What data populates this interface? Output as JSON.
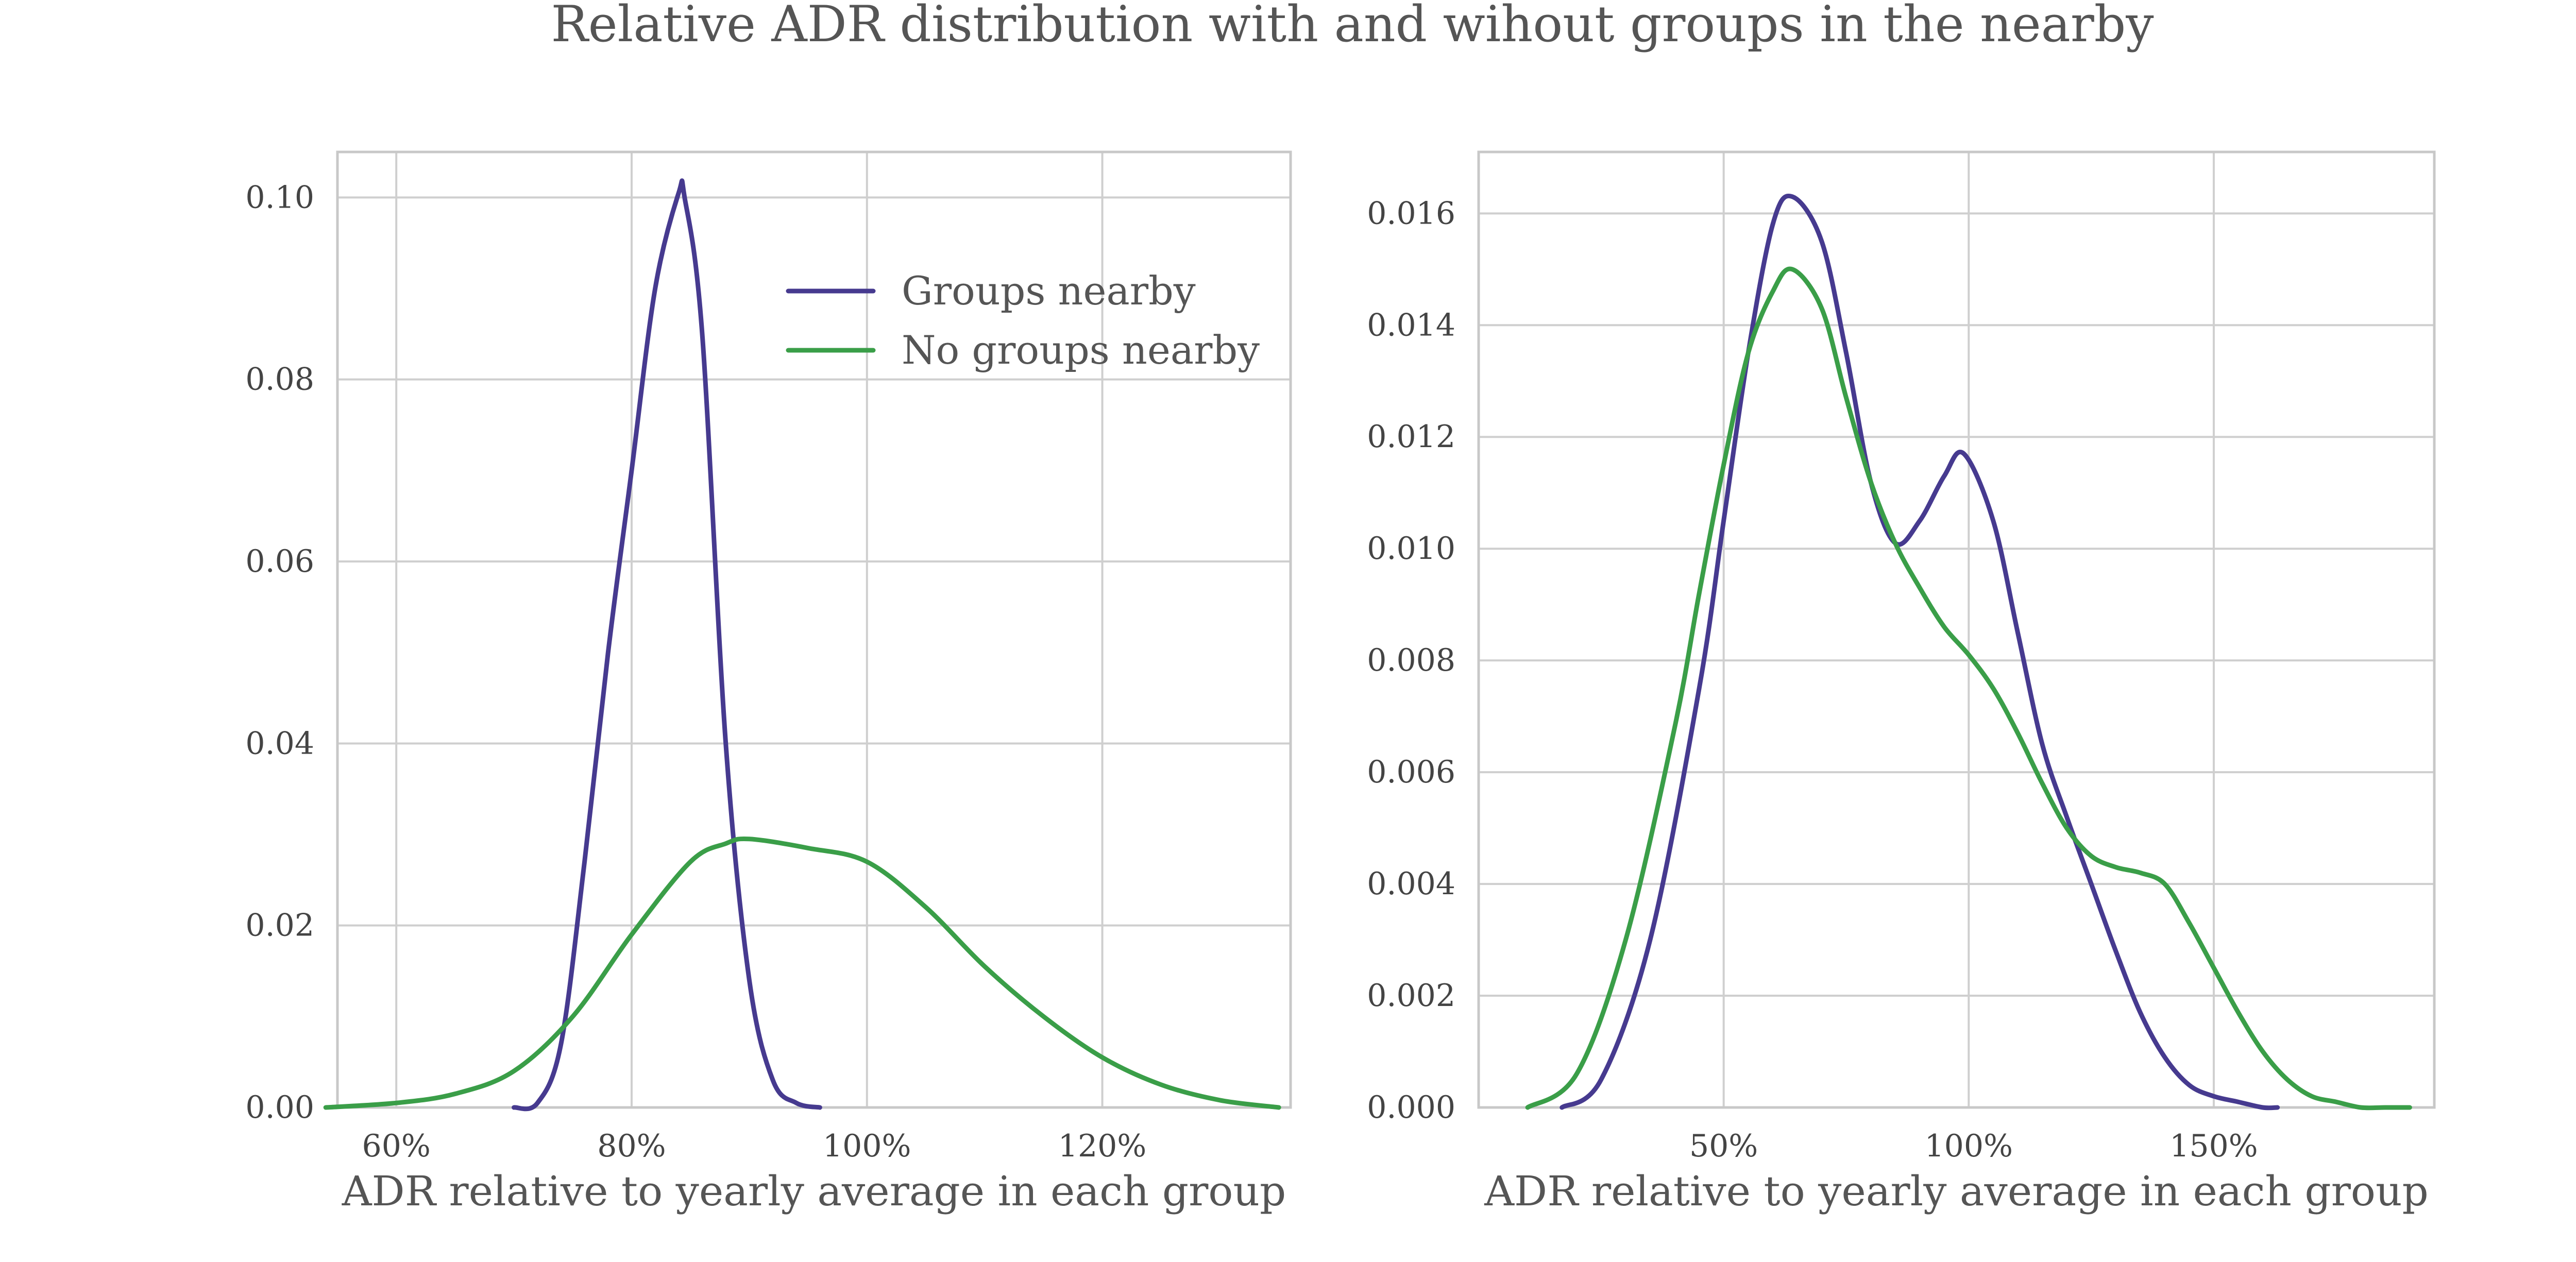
{
  "figure": {
    "title": "Relative ADR distribution with and wihout groups in the nearby"
  },
  "colors": {
    "groups_nearby": "#463a8f",
    "no_groups_nearby": "#3a9e48"
  },
  "chart_data": [
    {
      "type": "line",
      "xlabel": "ADR relative to yearly average in each group",
      "ylabel": "",
      "xlim": [
        0.55,
        1.36
      ],
      "ylim": [
        0,
        0.105
      ],
      "xticks": [
        0.6,
        0.8,
        1.0,
        1.2
      ],
      "xtick_labels": [
        "60%",
        "80%",
        "100%",
        "120%"
      ],
      "yticks": [
        0,
        0.02,
        0.04,
        0.06,
        0.08,
        0.1
      ],
      "ytick_labels": [
        "0.00",
        "0.02",
        "0.04",
        "0.06",
        "0.08",
        "0.10"
      ],
      "grid": true,
      "legend": {
        "position": "top-right"
      },
      "series": [
        {
          "name": "Groups nearby",
          "x": [
            0.7,
            0.72,
            0.74,
            0.76,
            0.78,
            0.8,
            0.82,
            0.84,
            0.845,
            0.86,
            0.88,
            0.9,
            0.92,
            0.94,
            0.96
          ],
          "y": [
            0.0,
            0.0005,
            0.007,
            0.027,
            0.05,
            0.07,
            0.09,
            0.1005,
            0.1,
            0.085,
            0.04,
            0.014,
            0.003,
            0.0005,
            0.0
          ]
        },
        {
          "name": "No groups nearby",
          "x": [
            0.54,
            0.6,
            0.65,
            0.7,
            0.75,
            0.8,
            0.85,
            0.88,
            0.9,
            0.95,
            1.0,
            1.05,
            1.1,
            1.15,
            1.2,
            1.25,
            1.3,
            1.35
          ],
          "y": [
            0.0,
            0.0005,
            0.0015,
            0.004,
            0.01,
            0.019,
            0.027,
            0.029,
            0.0295,
            0.0285,
            0.027,
            0.022,
            0.0155,
            0.01,
            0.0055,
            0.0025,
            0.0008,
            0.0
          ]
        }
      ]
    },
    {
      "type": "line",
      "xlabel": "ADR relative to yearly average in each group",
      "ylabel": "",
      "xlim": [
        0.0,
        1.95
      ],
      "ylim": [
        0,
        0.0171
      ],
      "xticks": [
        0.5,
        1.0,
        1.5
      ],
      "xtick_labels": [
        "50%",
        "100%",
        "150%"
      ],
      "yticks": [
        0,
        0.002,
        0.004,
        0.006,
        0.008,
        0.01,
        0.012,
        0.014,
        0.016
      ],
      "ytick_labels": [
        "0.000",
        "0.002",
        "0.004",
        "0.006",
        "0.008",
        "0.010",
        "0.012",
        "0.014",
        "0.016"
      ],
      "grid": true,
      "series": [
        {
          "name": "Groups nearby",
          "x": [
            0.17,
            0.25,
            0.35,
            0.45,
            0.5,
            0.55,
            0.6,
            0.64,
            0.7,
            0.75,
            0.8,
            0.85,
            0.9,
            0.95,
            0.99,
            1.05,
            1.1,
            1.15,
            1.2,
            1.25,
            1.3,
            1.35,
            1.4,
            1.45,
            1.5,
            1.55,
            1.6,
            1.63
          ],
          "y": [
            0.0,
            0.0005,
            0.003,
            0.0075,
            0.0105,
            0.0135,
            0.0158,
            0.0163,
            0.0155,
            0.0135,
            0.0112,
            0.0101,
            0.0105,
            0.0113,
            0.0117,
            0.0105,
            0.0085,
            0.0065,
            0.0052,
            0.004,
            0.0028,
            0.0017,
            0.0009,
            0.0004,
            0.0002,
            0.0001,
            0.0,
            0.0
          ]
        },
        {
          "name": "No groups nearby",
          "x": [
            0.1,
            0.2,
            0.3,
            0.4,
            0.45,
            0.5,
            0.55,
            0.6,
            0.64,
            0.7,
            0.75,
            0.8,
            0.85,
            0.9,
            0.95,
            1.0,
            1.05,
            1.1,
            1.15,
            1.2,
            1.25,
            1.3,
            1.35,
            1.4,
            1.45,
            1.5,
            1.55,
            1.6,
            1.65,
            1.7,
            1.75,
            1.8,
            1.85,
            1.9
          ],
          "y": [
            0.0,
            0.0006,
            0.003,
            0.0068,
            0.0092,
            0.0115,
            0.0135,
            0.0146,
            0.015,
            0.0143,
            0.0127,
            0.0112,
            0.0101,
            0.0093,
            0.0086,
            0.0081,
            0.0075,
            0.0067,
            0.0058,
            0.005,
            0.0045,
            0.0043,
            0.0042,
            0.004,
            0.0033,
            0.0025,
            0.0017,
            0.001,
            0.0005,
            0.0002,
            0.0001,
            0.0,
            0.0,
            0.0
          ]
        }
      ]
    }
  ]
}
